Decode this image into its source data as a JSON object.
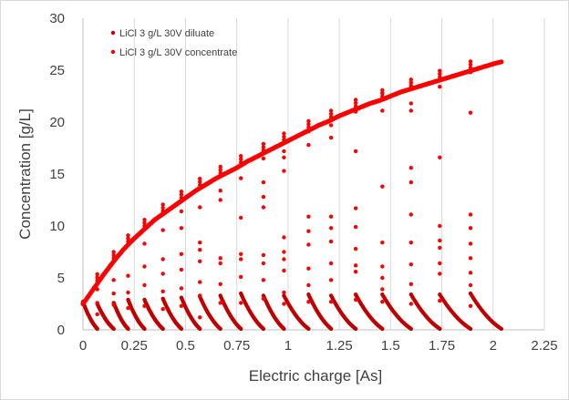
{
  "chart_data": {
    "type": "scatter",
    "xlabel": "Electric charge [As]",
    "ylabel": "Concentration [g/L]",
    "xlim": [
      0,
      2.25
    ],
    "ylim": [
      0,
      30
    ],
    "x_ticks": [
      "0",
      "0.25",
      "0.5",
      "0.75",
      "1",
      "1.25",
      "1.5",
      "1.75",
      "2",
      "2.25"
    ],
    "y_ticks": [
      "0",
      "5",
      "10",
      "15",
      "20",
      "25",
      "30"
    ],
    "grid": "vertical gridlines",
    "legend_position": "top-left",
    "series": [
      {
        "name": "LiCl 3 g/L 30V diluate",
        "color": "#c00000",
        "cycles": [
          {
            "x_start": 0.0,
            "x_end": 0.07,
            "y_start": 2.7,
            "y_end": 0.1
          },
          {
            "x_start": 0.07,
            "x_end": 0.15,
            "y_start": 2.5,
            "y_end": 0.1
          },
          {
            "x_start": 0.15,
            "x_end": 0.22,
            "y_start": 2.6,
            "y_end": 0.1
          },
          {
            "x_start": 0.22,
            "x_end": 0.3,
            "y_start": 2.9,
            "y_end": 0.1
          },
          {
            "x_start": 0.3,
            "x_end": 0.39,
            "y_start": 2.9,
            "y_end": 0.1
          },
          {
            "x_start": 0.39,
            "x_end": 0.48,
            "y_start": 3.0,
            "y_end": 0.1
          },
          {
            "x_start": 0.48,
            "x_end": 0.57,
            "y_start": 3.1,
            "y_end": 0.1
          },
          {
            "x_start": 0.57,
            "x_end": 0.67,
            "y_start": 3.2,
            "y_end": 0.1
          },
          {
            "x_start": 0.67,
            "x_end": 0.77,
            "y_start": 3.3,
            "y_end": 0.1
          },
          {
            "x_start": 0.77,
            "x_end": 0.88,
            "y_start": 3.5,
            "y_end": 0.1
          },
          {
            "x_start": 0.88,
            "x_end": 0.98,
            "y_start": 3.3,
            "y_end": 0.1
          },
          {
            "x_start": 0.98,
            "x_end": 1.1,
            "y_start": 3.3,
            "y_end": 0.1
          },
          {
            "x_start": 1.1,
            "x_end": 1.21,
            "y_start": 3.4,
            "y_end": 0.1
          },
          {
            "x_start": 1.21,
            "x_end": 1.33,
            "y_start": 3.3,
            "y_end": 0.1
          },
          {
            "x_start": 1.33,
            "x_end": 1.46,
            "y_start": 3.4,
            "y_end": 0.1
          },
          {
            "x_start": 1.46,
            "x_end": 1.6,
            "y_start": 3.4,
            "y_end": 0.1
          },
          {
            "x_start": 1.6,
            "x_end": 1.74,
            "y_start": 3.4,
            "y_end": 0.1
          },
          {
            "x_start": 1.74,
            "x_end": 1.89,
            "y_start": 3.4,
            "y_end": 0.1
          },
          {
            "x_start": 1.89,
            "x_end": 2.04,
            "y_start": 3.5,
            "y_end": 0.1
          }
        ]
      },
      {
        "name": "LiCl 3 g/L 30V concentrate",
        "color": "#ff0000",
        "curve": [
          [
            0.0,
            2.5
          ],
          [
            0.05,
            3.9
          ],
          [
            0.1,
            5.3
          ],
          [
            0.15,
            6.6
          ],
          [
            0.2,
            7.8
          ],
          [
            0.25,
            8.8
          ],
          [
            0.3,
            9.7
          ],
          [
            0.35,
            10.6
          ],
          [
            0.4,
            11.3
          ],
          [
            0.45,
            12.0
          ],
          [
            0.5,
            12.7
          ],
          [
            0.55,
            13.4
          ],
          [
            0.6,
            14.0
          ],
          [
            0.65,
            14.6
          ],
          [
            0.7,
            15.1
          ],
          [
            0.75,
            15.6
          ],
          [
            0.8,
            16.2
          ],
          [
            0.85,
            16.7
          ],
          [
            0.9,
            17.2
          ],
          [
            0.95,
            17.7
          ],
          [
            1.0,
            18.2
          ],
          [
            1.05,
            18.7
          ],
          [
            1.1,
            19.2
          ],
          [
            1.15,
            19.7
          ],
          [
            1.2,
            20.1
          ],
          [
            1.25,
            20.6
          ],
          [
            1.3,
            21.0
          ],
          [
            1.35,
            21.4
          ],
          [
            1.4,
            21.8
          ],
          [
            1.45,
            22.1
          ],
          [
            1.5,
            22.5
          ],
          [
            1.55,
            22.9
          ],
          [
            1.6,
            23.2
          ],
          [
            1.65,
            23.5
          ],
          [
            1.7,
            23.8
          ],
          [
            1.75,
            24.1
          ],
          [
            1.8,
            24.4
          ],
          [
            1.85,
            24.7
          ],
          [
            1.9,
            25.0
          ],
          [
            1.95,
            25.3
          ],
          [
            2.0,
            25.6
          ],
          [
            2.04,
            25.8
          ]
        ],
        "cycle_boundaries": [
          0.07,
          0.15,
          0.22,
          0.3,
          0.39,
          0.48,
          0.57,
          0.67,
          0.77,
          0.88,
          0.98,
          1.1,
          1.21,
          1.33,
          1.46,
          1.6,
          1.74,
          1.89
        ],
        "transition_points": [
          [
            0.07,
            1.5
          ],
          [
            0.07,
            2.6
          ],
          [
            0.07,
            3.9
          ],
          [
            0.15,
            2.4
          ],
          [
            0.15,
            3.5
          ],
          [
            0.15,
            4.8
          ],
          [
            0.22,
            2.1
          ],
          [
            0.22,
            3.6
          ],
          [
            0.22,
            5.2
          ],
          [
            0.3,
            2.3
          ],
          [
            0.3,
            4.3
          ],
          [
            0.3,
            6.1
          ],
          [
            0.3,
            8.3
          ],
          [
            0.39,
            2.0
          ],
          [
            0.39,
            3.7
          ],
          [
            0.39,
            5.4
          ],
          [
            0.39,
            6.8
          ],
          [
            0.39,
            9.6
          ],
          [
            0.48,
            2.3
          ],
          [
            0.48,
            4.0
          ],
          [
            0.48,
            5.8
          ],
          [
            0.48,
            7.3
          ],
          [
            0.48,
            9.8
          ],
          [
            0.48,
            11.4
          ],
          [
            0.57,
            1.2
          ],
          [
            0.57,
            3.3
          ],
          [
            0.57,
            4.6
          ],
          [
            0.57,
            6.6
          ],
          [
            0.57,
            7.7
          ],
          [
            0.57,
            8.4
          ],
          [
            0.57,
            11.8
          ],
          [
            0.67,
            2.6
          ],
          [
            0.67,
            4.4
          ],
          [
            0.67,
            6.4
          ],
          [
            0.67,
            6.9
          ],
          [
            0.67,
            12.5
          ],
          [
            0.67,
            13.4
          ],
          [
            0.77,
            2.6
          ],
          [
            0.77,
            5.1
          ],
          [
            0.77,
            6.8
          ],
          [
            0.77,
            7.3
          ],
          [
            0.77,
            10.8
          ],
          [
            0.77,
            14.6
          ],
          [
            0.88,
            3.0
          ],
          [
            0.88,
            4.8
          ],
          [
            0.88,
            6.4
          ],
          [
            0.88,
            7.2
          ],
          [
            0.88,
            11.8
          ],
          [
            0.88,
            12.8
          ],
          [
            0.88,
            14.2
          ],
          [
            0.88,
            16.5
          ],
          [
            0.98,
            2.5
          ],
          [
            0.98,
            3.6
          ],
          [
            0.98,
            5.7
          ],
          [
            0.98,
            6.8
          ],
          [
            0.98,
            7.5
          ],
          [
            0.98,
            8.9
          ],
          [
            0.98,
            15.3
          ],
          [
            0.98,
            16.6
          ],
          [
            0.98,
            17.2
          ],
          [
            1.1,
            2.7
          ],
          [
            1.1,
            4.3
          ],
          [
            1.1,
            5.9
          ],
          [
            1.1,
            8.2
          ],
          [
            1.1,
            9.5
          ],
          [
            1.1,
            10.9
          ],
          [
            1.1,
            17.8
          ],
          [
            1.1,
            19.1
          ],
          [
            1.21,
            2.7
          ],
          [
            1.21,
            4.8
          ],
          [
            1.21,
            6.4
          ],
          [
            1.21,
            8.5
          ],
          [
            1.21,
            9.8
          ],
          [
            1.21,
            10.9
          ],
          [
            1.21,
            18.5
          ],
          [
            1.21,
            19.7
          ],
          [
            1.33,
            2.9
          ],
          [
            1.33,
            5.6
          ],
          [
            1.33,
            6.2
          ],
          [
            1.33,
            7.8
          ],
          [
            1.33,
            9.9
          ],
          [
            1.33,
            11.7
          ],
          [
            1.33,
            17.2
          ],
          [
            1.33,
            21.0
          ],
          [
            1.46,
            2.7
          ],
          [
            1.46,
            3.9
          ],
          [
            1.46,
            5.0
          ],
          [
            1.46,
            6.1
          ],
          [
            1.46,
            8.4
          ],
          [
            1.46,
            13.8
          ],
          [
            1.46,
            21.1
          ],
          [
            1.46,
            22.8
          ],
          [
            1.6,
            2.5
          ],
          [
            1.6,
            4.4
          ],
          [
            1.6,
            6.3
          ],
          [
            1.6,
            8.4
          ],
          [
            1.6,
            11.1
          ],
          [
            1.6,
            14.2
          ],
          [
            1.6,
            15.6
          ],
          [
            1.6,
            21.1
          ],
          [
            1.6,
            21.8
          ],
          [
            1.74,
            2.8
          ],
          [
            1.74,
            5.4
          ],
          [
            1.74,
            6.4
          ],
          [
            1.74,
            7.9
          ],
          [
            1.74,
            8.6
          ],
          [
            1.74,
            10.0
          ],
          [
            1.74,
            16.6
          ],
          [
            1.74,
            23.4
          ],
          [
            1.89,
            2.3
          ],
          [
            1.89,
            4.3
          ],
          [
            1.89,
            5.5
          ],
          [
            1.89,
            6.9
          ],
          [
            1.89,
            8.3
          ],
          [
            1.89,
            9.8
          ],
          [
            1.89,
            11.1
          ],
          [
            1.89,
            20.9
          ],
          [
            1.89,
            24.8
          ]
        ]
      }
    ]
  }
}
